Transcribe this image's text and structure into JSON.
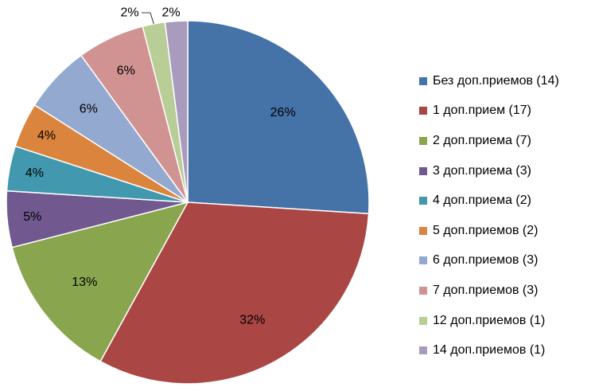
{
  "chart_data": {
    "type": "pie",
    "title": "",
    "legend_position": "right",
    "start_angle_deg": 0,
    "direction": "clockwise",
    "slices": [
      {
        "label": "Без доп.приемов (14)",
        "value": 26,
        "display": "26%",
        "color": "#4572A7"
      },
      {
        "label": "1 доп.прием (17)",
        "value": 32,
        "display": "32%",
        "color": "#AA4643"
      },
      {
        "label": "2 доп.приема (7)",
        "value": 13,
        "display": "13%",
        "color": "#89A54E"
      },
      {
        "label": "3 доп.приема (3)",
        "value": 5,
        "display": "5%",
        "color": "#71588F"
      },
      {
        "label": "4 доп.приема (2)",
        "value": 4,
        "display": "4%",
        "color": "#4198AF"
      },
      {
        "label": "5 доп.приемов (2)",
        "value": 4,
        "display": "4%",
        "color": "#DB843D"
      },
      {
        "label": "6 доп.приемов (3)",
        "value": 6,
        "display": "6%",
        "color": "#93A9CF"
      },
      {
        "label": "7 доп.приемов (3)",
        "value": 6,
        "display": "6%",
        "color": "#D19392"
      },
      {
        "label": "12 доп.приемов (1)",
        "value": 2,
        "display": "2%",
        "color": "#B9CD96"
      },
      {
        "label": "14 доп.приемов (1)",
        "value": 2,
        "display": "2%",
        "color": "#A99BBD"
      }
    ]
  }
}
